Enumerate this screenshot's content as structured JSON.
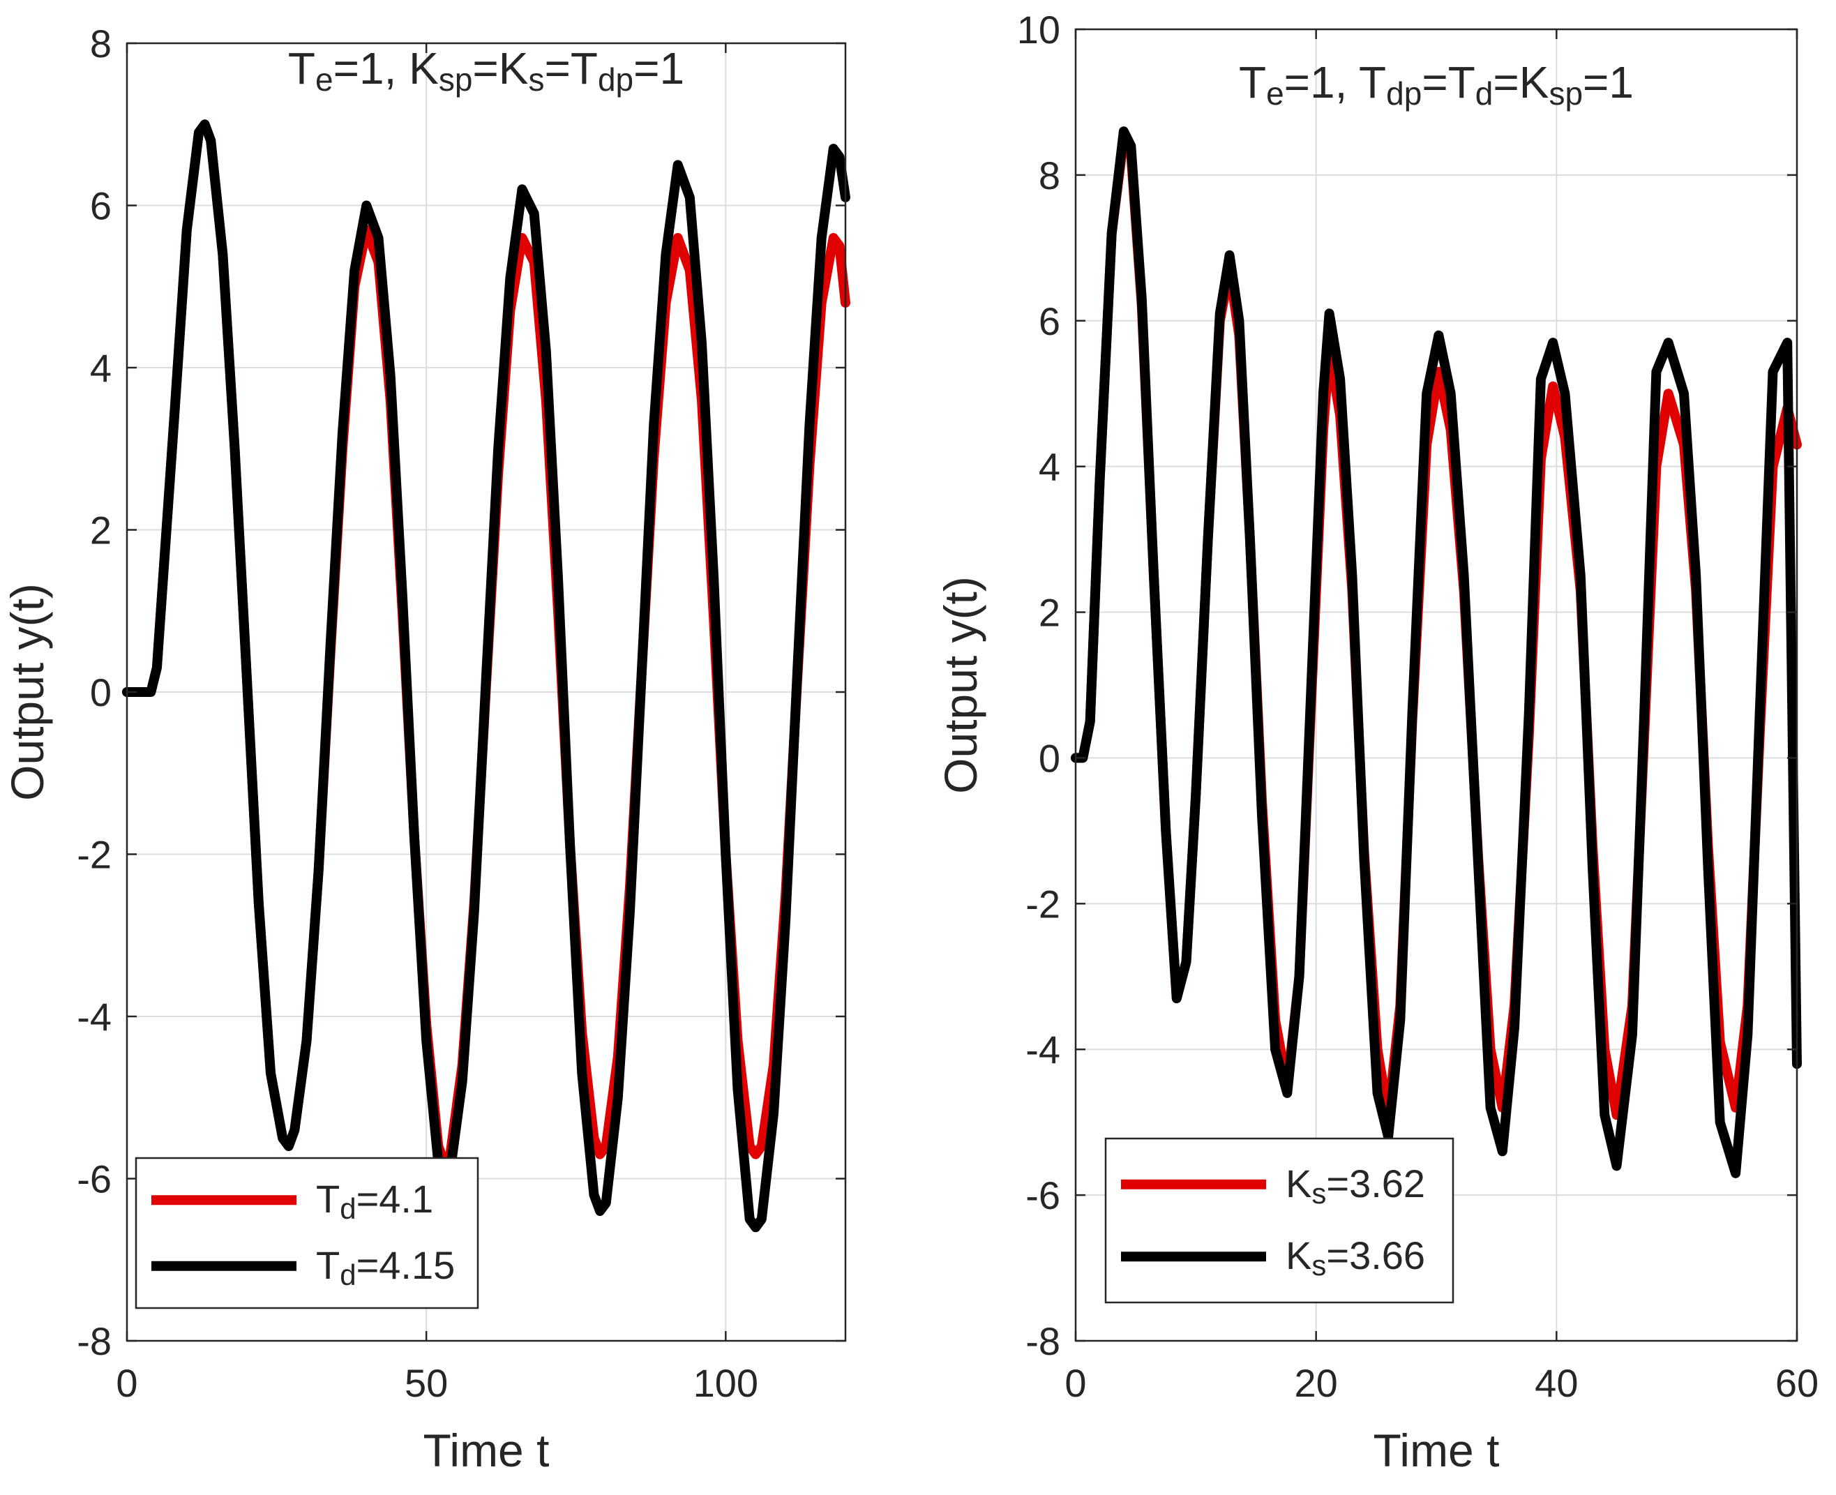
{
  "colors": {
    "series_red": "#e00000",
    "series_black": "#000000",
    "grid": "#dcdcdc",
    "axis": "#262626"
  },
  "chart_data": [
    {
      "type": "line",
      "xlabel": "Time t",
      "ylabel": "Output y(t)",
      "xlim": [
        0,
        120
      ],
      "ylim": [
        -8,
        8
      ],
      "xticks": [
        0,
        50,
        100
      ],
      "yticks": [
        -8,
        -6,
        -4,
        -2,
        0,
        2,
        4,
        6,
        8
      ],
      "grid": true,
      "legend_position": "bottom-left",
      "annotation": {
        "parts": [
          {
            "text": "T"
          },
          {
            "text": "e",
            "sub": true
          },
          {
            "text": "=1, K"
          },
          {
            "text": "sp",
            "sub": true
          },
          {
            "text": "=K"
          },
          {
            "text": "s",
            "sub": true
          },
          {
            "text": "=T"
          },
          {
            "text": "dp",
            "sub": true
          },
          {
            "text": "=1"
          }
        ]
      },
      "series": [
        {
          "name": "T_d=4.1",
          "label_main": "T",
          "label_sub": "d",
          "label_rest": "=4.1",
          "color": "#e00000",
          "x": [
            0,
            4,
            5,
            8,
            10,
            12,
            13,
            14,
            16,
            18,
            20,
            22,
            24,
            26,
            27,
            28,
            30,
            32,
            34,
            36,
            38,
            40,
            42,
            44,
            46,
            48,
            50,
            52,
            53,
            54,
            56,
            58,
            60,
            62,
            64,
            66,
            68,
            70,
            72,
            74,
            76,
            78,
            79,
            80,
            82,
            84,
            86,
            88,
            90,
            92,
            94,
            96,
            98,
            100,
            102,
            104,
            105,
            106,
            108,
            110,
            112,
            114,
            116,
            118,
            119,
            120
          ],
          "y": [
            0,
            0,
            0.3,
            3.5,
            5.7,
            6.9,
            7.0,
            6.8,
            5.4,
            3.0,
            0.2,
            -2.6,
            -4.7,
            -5.5,
            -5.6,
            -5.4,
            -4.3,
            -2.2,
            0.5,
            3.0,
            5.0,
            5.7,
            5.3,
            3.6,
            1.0,
            -1.8,
            -4.1,
            -5.6,
            -5.8,
            -5.7,
            -4.6,
            -2.6,
            0.1,
            2.7,
            4.7,
            5.6,
            5.3,
            3.6,
            1.0,
            -1.9,
            -4.2,
            -5.5,
            -5.7,
            -5.6,
            -4.5,
            -2.4,
            0.3,
            2.9,
            4.8,
            5.6,
            5.2,
            3.6,
            0.9,
            -2.0,
            -4.3,
            -5.6,
            -5.7,
            -5.6,
            -4.6,
            -2.5,
            0.2,
            2.8,
            4.8,
            5.6,
            5.5,
            4.8
          ]
        },
        {
          "name": "T_d=4.15",
          "label_main": "T",
          "label_sub": "d",
          "label_rest": "=4.15",
          "color": "#000000",
          "x": [
            0,
            4,
            5,
            8,
            10,
            12,
            13,
            14,
            16,
            18,
            20,
            22,
            24,
            26,
            27,
            28,
            30,
            32,
            34,
            36,
            38,
            40,
            42,
            44,
            46,
            48,
            50,
            52,
            53,
            54,
            56,
            58,
            60,
            62,
            64,
            66,
            68,
            70,
            72,
            74,
            76,
            78,
            79,
            80,
            82,
            84,
            86,
            88,
            90,
            92,
            94,
            96,
            98,
            100,
            102,
            104,
            105,
            106,
            108,
            110,
            112,
            114,
            116,
            118,
            119,
            120
          ],
          "y": [
            0,
            0,
            0.3,
            3.5,
            5.7,
            6.9,
            7.0,
            6.8,
            5.4,
            3.0,
            0.2,
            -2.6,
            -4.7,
            -5.5,
            -5.6,
            -5.4,
            -4.3,
            -2.2,
            0.6,
            3.2,
            5.2,
            6.0,
            5.6,
            3.9,
            1.2,
            -1.8,
            -4.3,
            -5.8,
            -6.0,
            -5.9,
            -4.8,
            -2.7,
            0.2,
            3.0,
            5.1,
            6.2,
            5.9,
            4.2,
            1.4,
            -1.9,
            -4.7,
            -6.2,
            -6.4,
            -6.3,
            -5.0,
            -2.7,
            0.3,
            3.3,
            5.4,
            6.5,
            6.1,
            4.3,
            1.4,
            -2.0,
            -4.9,
            -6.5,
            -6.6,
            -6.5,
            -5.2,
            -2.8,
            0.3,
            3.3,
            5.6,
            6.7,
            6.6,
            6.1
          ]
        }
      ]
    },
    {
      "type": "line",
      "xlabel": "Time t",
      "ylabel": "Output y(t)",
      "xlim": [
        0,
        60
      ],
      "ylim": [
        -8,
        10
      ],
      "xticks": [
        0,
        20,
        40,
        60
      ],
      "yticks": [
        -8,
        -6,
        -4,
        -2,
        0,
        2,
        4,
        6,
        8,
        10
      ],
      "grid": true,
      "legend_position": "bottom-left",
      "annotation": {
        "parts": [
          {
            "text": "T"
          },
          {
            "text": "e",
            "sub": true
          },
          {
            "text": "=1, T"
          },
          {
            "text": "dp",
            "sub": true
          },
          {
            "text": "=T"
          },
          {
            "text": "d",
            "sub": true
          },
          {
            "text": "=K"
          },
          {
            "text": "sp",
            "sub": true
          },
          {
            "text": "=1"
          }
        ]
      },
      "series": [
        {
          "name": "K_s=3.62",
          "label_main": "K",
          "label_sub": "s",
          "label_rest": "=3.62",
          "color": "#e00000",
          "x": [
            0,
            0.6,
            1.2,
            2,
            3,
            4,
            4.6,
            5.5,
            6.5,
            7.5,
            8.4,
            9.2,
            10,
            11,
            12,
            12.8,
            13.6,
            14.5,
            15.5,
            16.6,
            17.6,
            18.6,
            19.6,
            20.6,
            21.1,
            22,
            23,
            24,
            25.1,
            26,
            27,
            28,
            29.2,
            30.2,
            31.2,
            32.3,
            33.5,
            34.5,
            35.5,
            36.5,
            37.7,
            38.7,
            39.7,
            40.7,
            42,
            43,
            44,
            45,
            46.3,
            47.3,
            48.3,
            49.3,
            50.6,
            51.6,
            52.6,
            53.6,
            54.9,
            55.9,
            56.9,
            58,
            59.2,
            60
          ],
          "y": [
            0,
            0,
            0.5,
            3.8,
            7.2,
            8.5,
            8.3,
            6.2,
            2.5,
            -1.0,
            -3.3,
            -2.8,
            -0.5,
            3.0,
            6.0,
            6.7,
            5.8,
            3.0,
            -0.6,
            -3.6,
            -4.5,
            -3.0,
            0.8,
            4.5,
            5.6,
            4.7,
            2.3,
            -1.3,
            -4.0,
            -4.9,
            -3.4,
            0.5,
            4.3,
            5.3,
            4.5,
            2.3,
            -1.4,
            -4.0,
            -4.8,
            -3.4,
            0.3,
            4.1,
            5.1,
            4.4,
            2.3,
            -1.2,
            -4.0,
            -4.9,
            -3.4,
            0.3,
            4.0,
            5.0,
            4.3,
            2.3,
            -1.2,
            -3.9,
            -4.8,
            -3.4,
            0.3,
            4.0,
            4.8,
            4.3
          ]
        },
        {
          "name": "K_s=3.66",
          "label_main": "K",
          "label_sub": "s",
          "label_rest": "=3.66",
          "color": "#000000",
          "x": [
            0,
            0.6,
            1.2,
            2,
            3,
            4,
            4.6,
            5.5,
            6.5,
            7.5,
            8.4,
            9.2,
            10,
            11,
            12,
            12.8,
            13.6,
            14.5,
            15.5,
            16.6,
            17.6,
            18.6,
            19.6,
            20.6,
            21.1,
            22,
            23,
            24,
            25.1,
            26,
            27,
            28,
            29.2,
            30.2,
            31.2,
            32.3,
            33.5,
            34.5,
            35.5,
            36.5,
            37.7,
            38.7,
            39.7,
            40.7,
            42,
            43,
            44,
            45,
            46.3,
            47.3,
            48.3,
            49.3,
            50.6,
            51.6,
            52.6,
            53.6,
            54.9,
            55.9,
            56.9,
            58,
            59.2,
            60
          ],
          "y": [
            0,
            0,
            0.5,
            3.8,
            7.2,
            8.6,
            8.4,
            6.3,
            2.5,
            -1.0,
            -3.3,
            -2.8,
            -0.5,
            3.0,
            6.1,
            6.9,
            6.0,
            3.0,
            -0.8,
            -4.0,
            -4.6,
            -3.0,
            1.0,
            5.0,
            6.1,
            5.2,
            2.5,
            -1.4,
            -4.6,
            -5.2,
            -3.6,
            0.6,
            5.0,
            5.8,
            5.0,
            2.5,
            -1.5,
            -4.8,
            -5.4,
            -3.7,
            0.6,
            5.2,
            5.7,
            5.0,
            2.5,
            -1.5,
            -4.9,
            -5.6,
            -3.8,
            0.6,
            5.3,
            5.7,
            5.0,
            2.5,
            -1.5,
            -5.0,
            -5.7,
            -3.8,
            0.6,
            5.3,
            5.7,
            -4.2
          ]
        }
      ]
    }
  ]
}
